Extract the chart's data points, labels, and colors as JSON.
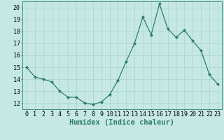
{
  "x": [
    0,
    1,
    2,
    3,
    4,
    5,
    6,
    7,
    8,
    9,
    10,
    11,
    12,
    13,
    14,
    15,
    16,
    17,
    18,
    19,
    20,
    21,
    22,
    23
  ],
  "y": [
    15.0,
    14.2,
    14.0,
    13.8,
    13.0,
    12.5,
    12.5,
    12.0,
    11.9,
    12.1,
    12.7,
    13.9,
    15.5,
    17.0,
    19.2,
    17.7,
    20.3,
    18.2,
    17.5,
    18.1,
    17.2,
    16.4,
    14.4,
    13.6
  ],
  "line_color": "#2e7d6e",
  "marker": "D",
  "marker_size": 2.0,
  "bg_color": "#c5e8e5",
  "grid_color": "#b0d8d4",
  "xlabel": "Humidex (Indice chaleur)",
  "xlim": [
    -0.5,
    23.5
  ],
  "ylim": [
    11.5,
    20.5
  ],
  "yticks": [
    12,
    13,
    14,
    15,
    16,
    17,
    18,
    19,
    20
  ],
  "xticks": [
    0,
    1,
    2,
    3,
    4,
    5,
    6,
    7,
    8,
    9,
    10,
    11,
    12,
    13,
    14,
    15,
    16,
    17,
    18,
    19,
    20,
    21,
    22,
    23
  ],
  "tick_label_fontsize": 6.0,
  "xlabel_fontsize": 7.5,
  "line_width": 0.9
}
